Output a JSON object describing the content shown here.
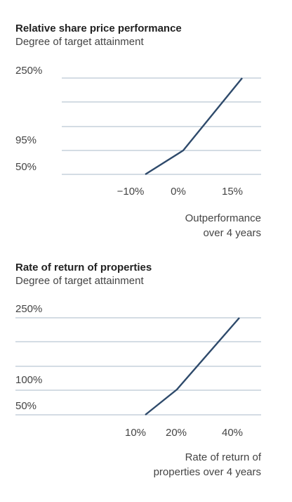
{
  "chart_data": [
    {
      "type": "line",
      "title": "Relative share price performance",
      "subtitle": "Degree of target attainment",
      "xlabel_lines": [
        "Outperformance",
        "over 4 years"
      ],
      "ylabel": "Degree of target attainment",
      "y_tick_labels": [
        {
          "value": 250,
          "label": "250%"
        },
        {
          "value": 95,
          "label": "95%"
        },
        {
          "value": 50,
          "label": "50%"
        }
      ],
      "x_tick_labels": [
        {
          "value": -10,
          "label": "−10%"
        },
        {
          "value": 0,
          "label": "0%"
        },
        {
          "value": 15,
          "label": "15%"
        }
      ],
      "series": [
        {
          "x": [
            -10,
            0,
            15
          ],
          "y": [
            50,
            95,
            250
          ]
        }
      ],
      "grid": true,
      "color": "#2e4a6b"
    },
    {
      "type": "line",
      "title": "Rate of return of properties",
      "subtitle": "Degree of target attainment",
      "xlabel_lines": [
        "Rate of return of",
        "properties over 4 years"
      ],
      "ylabel": "Degree of target attainment",
      "y_tick_labels": [
        {
          "value": 250,
          "label": "250%"
        },
        {
          "value": 100,
          "label": "100%"
        },
        {
          "value": 50,
          "label": "50%"
        }
      ],
      "x_tick_labels": [
        {
          "value": 10,
          "label": "10%"
        },
        {
          "value": 20,
          "label": "20%"
        },
        {
          "value": 40,
          "label": "40%"
        }
      ],
      "series": [
        {
          "x": [
            10,
            20,
            40
          ],
          "y": [
            50,
            100,
            250
          ]
        }
      ],
      "grid": true,
      "color": "#2e4a6b"
    }
  ]
}
